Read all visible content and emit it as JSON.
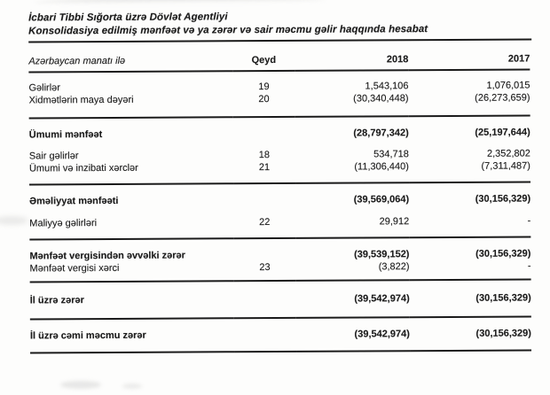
{
  "document": {
    "title": "İcbari Tibbi Sığorta üzrə Dövlət Agentliyi",
    "subtitle": "Konsolidasiya edilmiş mənfəət və ya zərər və sair məcmu gəlir haqqında hesabat"
  },
  "colors": {
    "ink": "#1c1c1c",
    "paper": "#fdfdfc",
    "rule_line": "#1a1a1a"
  },
  "table": {
    "headers": {
      "currency": "Azərbaycan manatı ilə",
      "note": "Qeyd",
      "year_2018": "2018",
      "year_2017": "2017"
    },
    "rows": [
      {
        "label": "Gəlirlər",
        "note": "19",
        "y2018": "1,543,106",
        "y2017": "1,076,015"
      },
      {
        "label": "Xidmətlərin maya dəyəri",
        "note": "20",
        "y2018": "(30,340,448)",
        "y2017": "(26,273,659)"
      },
      {
        "label": "Ümumi mənfəət",
        "note": "",
        "y2018": "(28,797,342)",
        "y2017": "(25,197,644)"
      },
      {
        "label": "Sair gəlirlər",
        "note": "18",
        "y2018": "534,718",
        "y2017": "2,352,802"
      },
      {
        "label": "Ümumi və inzibati xərclər",
        "note": "21",
        "y2018": "(11,306,440)",
        "y2017": "(7,311,487)"
      },
      {
        "label": "Əməliyyat mənfəəti",
        "note": "",
        "y2018": "(39,569,064)",
        "y2017": "(30,156,329)"
      },
      {
        "label": "Maliyyə gəlirləri",
        "note": "22",
        "y2018": "29,912",
        "y2017": "-"
      },
      {
        "label": "Mənfəət vergisindən əvvəlki zərər",
        "note": "",
        "y2018": "(39,539,152)",
        "y2017": "(30,156,329)"
      },
      {
        "label": "Mənfəət vergisi xərci",
        "note": "23",
        "y2018": "(3,822)",
        "y2017": "-"
      },
      {
        "label": "İl üzrə zərər",
        "note": "",
        "y2018": "(39,542,974)",
        "y2017": "(30,156,329)"
      },
      {
        "label": "İl üzrə cəmi məcmu zərər",
        "note": "",
        "y2018": "(39,542,974)",
        "y2017": "(30,156,329)"
      }
    ]
  }
}
